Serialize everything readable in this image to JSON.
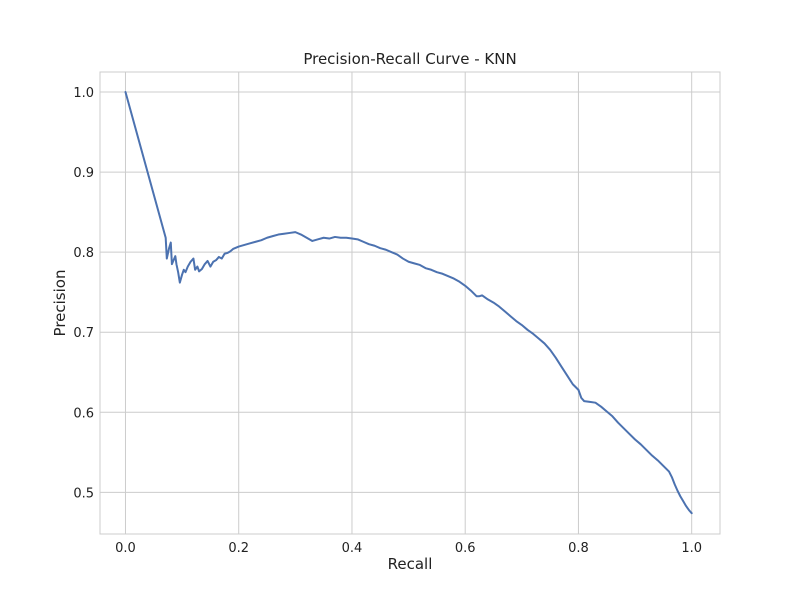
{
  "chart_data": {
    "type": "line",
    "title": "Precision-Recall Curve - KNN",
    "xlabel": "Recall",
    "ylabel": "Precision",
    "xlim": [
      -0.045,
      1.05
    ],
    "ylim": [
      0.448,
      1.025
    ],
    "xticks": [
      0.0,
      0.2,
      0.4,
      0.6,
      0.8,
      1.0
    ],
    "xtick_labels": [
      "0.0",
      "0.2",
      "0.4",
      "0.6",
      "0.8",
      "1.0"
    ],
    "yticks": [
      0.5,
      0.6,
      0.7,
      0.8,
      0.9,
      1.0
    ],
    "ytick_labels": [
      "0.5",
      "0.6",
      "0.7",
      "0.8",
      "0.9",
      "1.0"
    ],
    "grid": true,
    "line_color": "#4c72b0",
    "grid_color": "#cccccc",
    "series": [
      {
        "x": [
          0.0,
          0.071,
          0.073,
          0.077,
          0.08,
          0.082,
          0.085,
          0.088,
          0.09,
          0.093,
          0.096,
          0.1,
          0.103,
          0.106,
          0.11,
          0.115,
          0.12,
          0.123,
          0.127,
          0.13,
          0.135,
          0.14,
          0.145,
          0.15,
          0.155,
          0.16,
          0.165,
          0.17,
          0.175,
          0.18,
          0.185,
          0.19,
          0.2,
          0.21,
          0.22,
          0.23,
          0.24,
          0.25,
          0.26,
          0.27,
          0.28,
          0.29,
          0.3,
          0.31,
          0.32,
          0.33,
          0.34,
          0.35,
          0.36,
          0.37,
          0.38,
          0.39,
          0.4,
          0.41,
          0.42,
          0.43,
          0.44,
          0.45,
          0.46,
          0.47,
          0.48,
          0.49,
          0.5,
          0.51,
          0.52,
          0.53,
          0.54,
          0.55,
          0.56,
          0.57,
          0.58,
          0.59,
          0.6,
          0.61,
          0.62,
          0.625,
          0.63,
          0.64,
          0.65,
          0.66,
          0.67,
          0.68,
          0.69,
          0.7,
          0.71,
          0.72,
          0.73,
          0.74,
          0.75,
          0.76,
          0.77,
          0.78,
          0.79,
          0.8,
          0.805,
          0.81,
          0.82,
          0.83,
          0.84,
          0.85,
          0.86,
          0.87,
          0.88,
          0.89,
          0.9,
          0.91,
          0.92,
          0.93,
          0.94,
          0.95,
          0.96,
          0.965,
          0.97,
          0.975,
          0.98,
          0.985,
          0.99,
          0.995,
          1.0
        ],
        "y": [
          1.0,
          0.818,
          0.792,
          0.805,
          0.812,
          0.785,
          0.79,
          0.795,
          0.785,
          0.775,
          0.762,
          0.772,
          0.778,
          0.775,
          0.782,
          0.788,
          0.792,
          0.778,
          0.782,
          0.776,
          0.779,
          0.785,
          0.789,
          0.782,
          0.788,
          0.79,
          0.794,
          0.792,
          0.798,
          0.799,
          0.801,
          0.804,
          0.807,
          0.809,
          0.811,
          0.813,
          0.815,
          0.818,
          0.82,
          0.822,
          0.823,
          0.824,
          0.825,
          0.822,
          0.818,
          0.814,
          0.816,
          0.818,
          0.817,
          0.819,
          0.818,
          0.818,
          0.817,
          0.816,
          0.813,
          0.81,
          0.808,
          0.805,
          0.803,
          0.8,
          0.797,
          0.792,
          0.788,
          0.786,
          0.784,
          0.78,
          0.778,
          0.775,
          0.773,
          0.77,
          0.767,
          0.763,
          0.758,
          0.752,
          0.745,
          0.745,
          0.746,
          0.741,
          0.737,
          0.732,
          0.726,
          0.72,
          0.714,
          0.709,
          0.703,
          0.698,
          0.692,
          0.686,
          0.678,
          0.668,
          0.657,
          0.646,
          0.635,
          0.628,
          0.618,
          0.614,
          0.613,
          0.612,
          0.607,
          0.601,
          0.595,
          0.587,
          0.58,
          0.573,
          0.566,
          0.56,
          0.553,
          0.546,
          0.54,
          0.533,
          0.526,
          0.519,
          0.51,
          0.502,
          0.495,
          0.489,
          0.483,
          0.478,
          0.474
        ]
      }
    ]
  }
}
